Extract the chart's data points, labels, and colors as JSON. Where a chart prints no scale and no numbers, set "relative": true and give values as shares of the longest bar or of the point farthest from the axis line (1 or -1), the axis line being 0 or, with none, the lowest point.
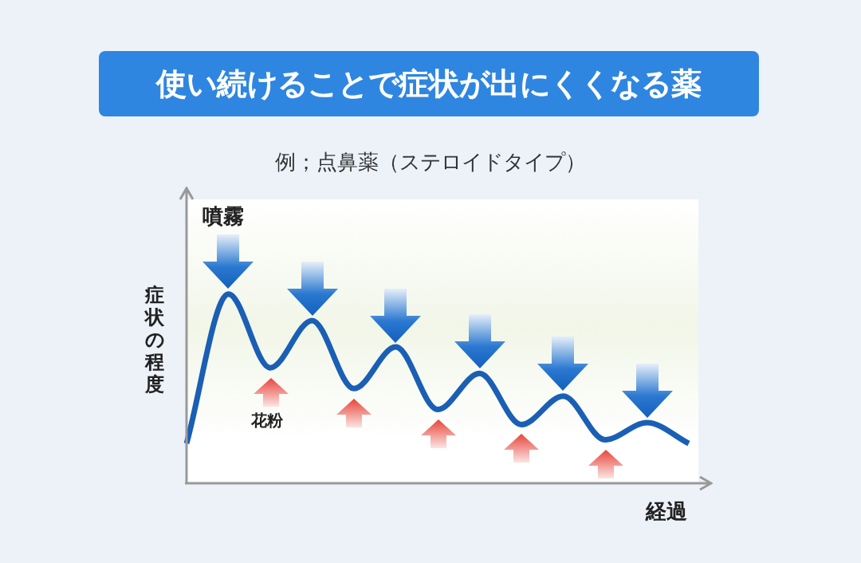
{
  "chart_data": {
    "type": "line",
    "title": "使い続けることで症状が出にくくなる薬",
    "subtitle": "例；点鼻薬（ステロイドタイプ）",
    "ylabel": "症状の程度",
    "xlabel": "経過",
    "relative": true,
    "categories": [
      null,
      null,
      null,
      null,
      null,
      null,
      null,
      null,
      null,
      null,
      null,
      null,
      null
    ],
    "series": [
      {
        "color": "#1b5fb5",
        "values": [
          0.21,
          1.0,
          0.61,
          0.86,
          0.5,
          0.72,
          0.39,
          0.58,
          0.31,
          0.46,
          0.23,
          0.32,
          0.21
        ]
      }
    ],
    "annotations": [
      "噴霧",
      "花粉"
    ],
    "grid": false,
    "legend": false,
    "marker": "none",
    "line_style": "solid"
  }
}
